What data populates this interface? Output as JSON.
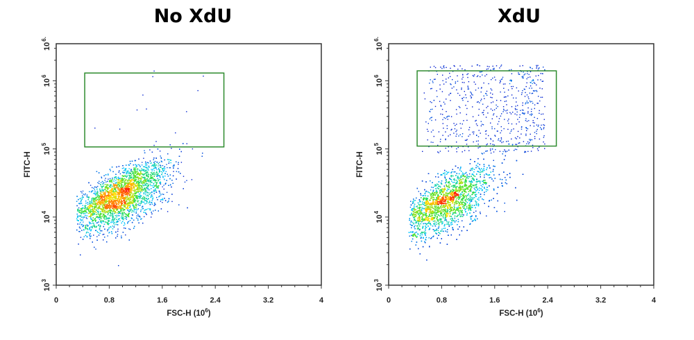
{
  "chart_data": [
    {
      "type": "scatter",
      "title": "No XdU",
      "xlabel": {
        "text": "FSC-H (10",
        "exp": "6",
        "close": ")"
      },
      "ylabel": "FITC-H",
      "xlim": [
        0,
        4
      ],
      "ylim": [
        1000,
        3500000
      ],
      "yscale": "log",
      "grid": false,
      "color_by": "density",
      "colormap": [
        "#0000c8",
        "#00c8ff",
        "#30e030",
        "#ffe000",
        "#ff2000"
      ],
      "xticks": [
        "0",
        "0.8",
        "1.6",
        "2.4",
        "3.2",
        "4"
      ],
      "yticks": [
        {
          "base": "10",
          "exp": "3"
        },
        {
          "base": "10",
          "exp": "4"
        },
        {
          "base": "10",
          "exp": "5"
        },
        {
          "base": "10",
          "exp": "6"
        },
        {
          "base": "10",
          "exp": "6."
        }
      ],
      "gate": {
        "x": [
          0.43,
          2.53
        ],
        "y": [
          107000,
          1300000
        ],
        "color": "#2e8b2e"
      },
      "populations": [
        {
          "count": 5200,
          "fsc_center": 0.9,
          "fitc_center": 20000,
          "fsc_max": 2.2,
          "fitc_max": 110000
        },
        {
          "count": 14,
          "in_gate": true
        }
      ]
    },
    {
      "type": "scatter",
      "title": "XdU",
      "xlabel": {
        "text": "FSC-H (10",
        "exp": "6",
        "close": ")"
      },
      "ylabel": "FITC-H",
      "xlim": [
        0,
        4
      ],
      "ylim": [
        1000,
        3500000
      ],
      "yscale": "log",
      "grid": false,
      "color_by": "density",
      "colormap": [
        "#0000c8",
        "#00c8ff",
        "#30e030",
        "#ffe000",
        "#ff2000"
      ],
      "xticks": [
        "0",
        "0.8",
        "1.6",
        "2.4",
        "3.2",
        "4"
      ],
      "yticks": [
        {
          "base": "10",
          "exp": "3"
        },
        {
          "base": "10",
          "exp": "4"
        },
        {
          "base": "10",
          "exp": "5"
        },
        {
          "base": "10",
          "exp": "6"
        },
        {
          "base": "10",
          "exp": "6."
        }
      ],
      "gate": {
        "x": [
          0.43,
          2.53
        ],
        "y": [
          110000,
          1400000
        ],
        "color": "#2e8b2e"
      },
      "populations": [
        {
          "count": 5200,
          "fsc_center": 0.8,
          "fitc_center": 16000,
          "fsc_max": 2.25,
          "fitc_max": 130000
        },
        {
          "count": 650,
          "in_gate": true
        }
      ]
    }
  ]
}
